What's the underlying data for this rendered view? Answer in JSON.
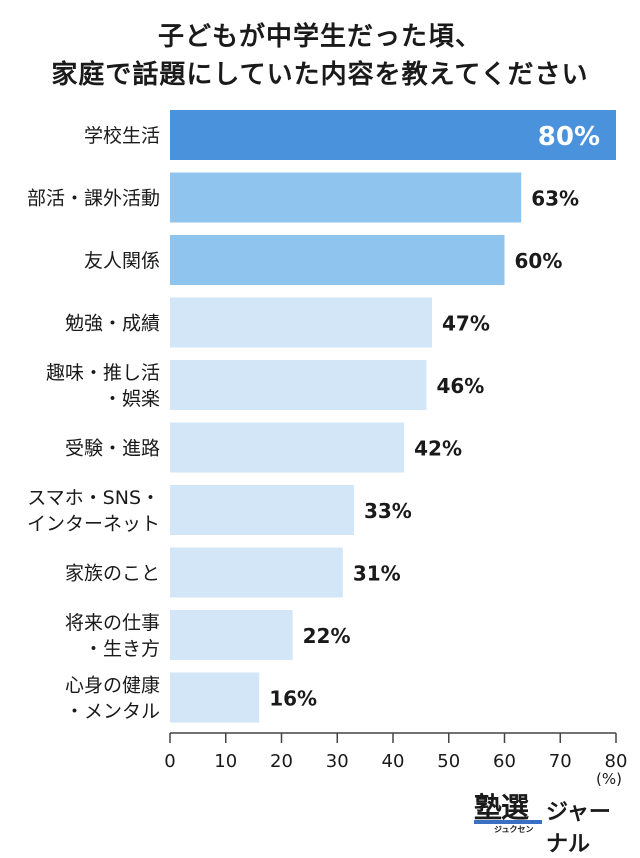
{
  "title_lines": [
    "子どもが中学生だった頃、",
    "家庭で話題にしていた内容を教えてください"
  ],
  "unit": "(%)",
  "logo": {
    "main": "塾選",
    "sub": "ジュクセン",
    "word": "ジャーナル"
  },
  "colors": {
    "highlight": "#4b92dc",
    "top": "#8fc4ee",
    "rest": "#d2e6f7",
    "axis": "#444444"
  },
  "chart_data": {
    "type": "bar",
    "orientation": "horizontal",
    "categories": [
      [
        "学校生活"
      ],
      [
        "部活・課外活動"
      ],
      [
        "友人関係"
      ],
      [
        "勉強・成績"
      ],
      [
        "趣味・推し活",
        "・娯楽"
      ],
      [
        "受験・進路"
      ],
      [
        "スマホ・SNS・",
        "インターネット"
      ],
      [
        "家族のこと"
      ],
      [
        "将来の仕事",
        "・生き方"
      ],
      [
        "心身の健康",
        "・メンタル"
      ]
    ],
    "values": [
      80,
      63,
      60,
      47,
      46,
      42,
      33,
      31,
      22,
      16
    ],
    "value_labels": [
      "80%",
      "63%",
      "60%",
      "47%",
      "46%",
      "42%",
      "33%",
      "31%",
      "22%",
      "16%"
    ],
    "xlim": [
      0,
      80
    ],
    "xticks": [
      0,
      10,
      20,
      30,
      40,
      50,
      60,
      70,
      80
    ],
    "grid": false
  }
}
